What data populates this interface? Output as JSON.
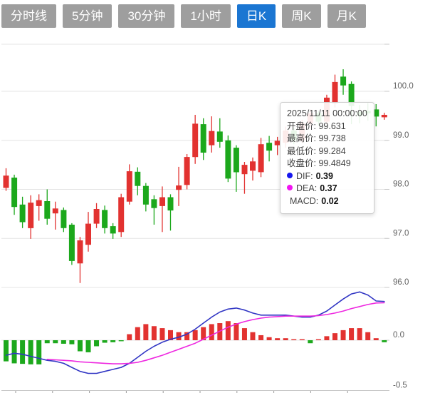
{
  "toolbar": {
    "tabs": [
      {
        "label": "分时线",
        "active": false
      },
      {
        "label": "5分钟",
        "active": false
      },
      {
        "label": "30分钟",
        "active": false
      },
      {
        "label": "1小时",
        "active": false
      },
      {
        "label": "日K",
        "active": true
      },
      {
        "label": "周K",
        "active": false
      },
      {
        "label": "月K",
        "active": false
      }
    ]
  },
  "tooltip": {
    "datetime": "2025/11/11 00:00:00",
    "rows": [
      {
        "label": "开盘价:",
        "value": "99.631"
      },
      {
        "label": "最高价:",
        "value": "99.738"
      },
      {
        "label": "最低价:",
        "value": "99.284"
      },
      {
        "label": "收盘价:",
        "value": "99.4849"
      }
    ],
    "indicators": [
      {
        "label": "DIF:",
        "value": "0.39",
        "bullet_color": "#1717ee"
      },
      {
        "label": "DEA:",
        "value": "0.37",
        "bullet_color": "#f214f2"
      },
      {
        "label": "MACD:",
        "value": "0.02",
        "bullet_color": null
      }
    ]
  },
  "colors": {
    "up_red": "#e23230",
    "down_green": "#1ca81c",
    "dif_line": "#3136c4",
    "dea_line": "#ee28e0",
    "grid": "#e4e4e4",
    "axis_line": "#c9c9c9",
    "tick": "#999999",
    "axis_text": "#606060",
    "tab_bg": "#9e9e9e",
    "tab_active_bg": "#1b76d2",
    "tab_text": "#ffffff",
    "background": "#ffffff"
  },
  "chart_data": {
    "type": "candlestick",
    "subpanes": [
      "price",
      "macd"
    ],
    "hovered_point": {
      "datetime": "2025/11/11 00:00:00",
      "open": 99.631,
      "high": 99.738,
      "low": 99.284,
      "close": 99.4849,
      "dif": 0.39,
      "dea": 0.37,
      "macd": 0.02
    },
    "price_axis": {
      "labels": [
        "100.0",
        "99.0",
        "98.0",
        "97.0",
        "96.0"
      ],
      "values": [
        100.0,
        99.0,
        98.0,
        97.0,
        96.0
      ]
    },
    "macd_axis": {
      "labels": [
        "0.0",
        "-0.5"
      ],
      "values": [
        0.0,
        -0.5
      ]
    },
    "legend_position": "none",
    "grid": true,
    "candles_ohlc": [
      [
        98.03,
        98.43,
        97.97,
        98.28
      ],
      [
        98.24,
        98.3,
        97.48,
        97.64
      ],
      [
        97.69,
        97.85,
        97.21,
        97.33
      ],
      [
        97.21,
        97.88,
        96.99,
        97.73
      ],
      [
        97.66,
        97.9,
        97.36,
        97.78
      ],
      [
        97.76,
        98.0,
        97.28,
        97.4
      ],
      [
        97.51,
        97.75,
        97.18,
        97.61
      ],
      [
        97.58,
        97.63,
        97.13,
        97.21
      ],
      [
        97.28,
        97.31,
        96.46,
        96.54
      ],
      [
        96.49,
        97.03,
        96.09,
        96.96
      ],
      [
        96.87,
        97.54,
        96.73,
        97.3
      ],
      [
        97.3,
        97.72,
        97.21,
        97.6
      ],
      [
        97.58,
        97.67,
        97.1,
        97.21
      ],
      [
        97.25,
        97.31,
        96.99,
        97.1
      ],
      [
        97.13,
        97.91,
        97.03,
        97.84
      ],
      [
        97.75,
        98.51,
        97.69,
        98.37
      ],
      [
        98.36,
        98.45,
        97.88,
        98.07
      ],
      [
        98.07,
        98.13,
        97.55,
        97.69
      ],
      [
        97.8,
        97.88,
        97.28,
        97.62
      ],
      [
        97.66,
        98.06,
        97.13,
        97.84
      ],
      [
        97.84,
        97.9,
        97.16,
        97.57
      ],
      [
        97.99,
        98.46,
        97.66,
        98.08
      ],
      [
        98.09,
        98.72,
        98.0,
        98.66
      ],
      [
        98.66,
        99.52,
        98.52,
        99.34
      ],
      [
        99.33,
        99.45,
        98.6,
        98.75
      ],
      [
        98.9,
        99.49,
        98.75,
        99.19
      ],
      [
        99.18,
        99.45,
        98.85,
        98.97
      ],
      [
        99.0,
        99.1,
        98.15,
        98.22
      ],
      [
        98.85,
        98.9,
        97.95,
        98.35
      ],
      [
        98.31,
        98.56,
        97.91,
        98.5
      ],
      [
        98.38,
        98.65,
        98.18,
        98.57
      ],
      [
        98.35,
        99.05,
        98.25,
        98.92
      ],
      [
        98.95,
        99.09,
        98.57,
        98.79
      ],
      [
        98.9,
        99.07,
        98.7,
        98.99
      ],
      [
        98.95,
        99.28,
        98.85,
        99.2
      ],
      [
        99.2,
        99.26,
        98.92,
        99.0
      ],
      [
        99.0,
        99.42,
        98.95,
        99.35
      ],
      [
        99.35,
        99.63,
        99.28,
        99.55
      ],
      [
        99.55,
        99.6,
        99.3,
        99.38
      ],
      [
        99.38,
        99.93,
        99.33,
        99.87
      ],
      [
        99.75,
        100.34,
        99.67,
        100.19
      ],
      [
        100.3,
        100.45,
        99.93,
        100.12
      ],
      [
        100.15,
        100.2,
        99.33,
        99.7
      ],
      [
        99.58,
        99.72,
        99.35,
        99.5
      ],
      [
        99.6,
        99.76,
        99.4,
        99.55
      ],
      [
        99.631,
        99.738,
        99.284,
        99.4849
      ],
      [
        99.47,
        99.56,
        99.42,
        99.52
      ]
    ],
    "dif": [
      -0.15,
      -0.13,
      -0.14,
      -0.16,
      -0.18,
      -0.2,
      -0.21,
      -0.23,
      -0.27,
      -0.31,
      -0.33,
      -0.33,
      -0.31,
      -0.29,
      -0.27,
      -0.23,
      -0.17,
      -0.11,
      -0.06,
      -0.02,
      0.01,
      0.03,
      0.06,
      0.11,
      0.17,
      0.23,
      0.28,
      0.31,
      0.32,
      0.3,
      0.27,
      0.25,
      0.25,
      0.25,
      0.25,
      0.24,
      0.23,
      0.23,
      0.25,
      0.29,
      0.35,
      0.41,
      0.46,
      0.48,
      0.45,
      0.39,
      0.385
    ],
    "dea": [
      null,
      null,
      null,
      null,
      null,
      -0.19,
      -0.195,
      -0.2,
      -0.205,
      -0.215,
      -0.22,
      -0.225,
      -0.23,
      -0.235,
      -0.235,
      -0.23,
      -0.22,
      -0.2,
      -0.175,
      -0.15,
      -0.12,
      -0.09,
      -0.06,
      -0.03,
      0.01,
      0.05,
      0.09,
      0.13,
      0.16,
      0.185,
      0.205,
      0.22,
      0.23,
      0.235,
      0.24,
      0.24,
      0.24,
      0.24,
      0.245,
      0.255,
      0.27,
      0.29,
      0.315,
      0.335,
      0.355,
      0.37,
      0.372
    ],
    "macd_hist": [
      -0.21,
      -0.23,
      -0.235,
      -0.24,
      -0.24,
      -0.03,
      -0.03,
      -0.035,
      -0.04,
      -0.11,
      -0.12,
      -0.06,
      -0.025,
      -0.02,
      -0.01,
      0.06,
      0.13,
      0.16,
      0.14,
      0.12,
      0.1,
      0.08,
      0.08,
      0.1,
      0.13,
      0.16,
      0.17,
      0.19,
      0.17,
      0.12,
      0.08,
      0.05,
      0.03,
      0.02,
      0.02,
      0.01,
      0.01,
      -0.03,
      0.01,
      0.04,
      0.07,
      0.1,
      0.12,
      0.12,
      0.08,
      0.02,
      -0.02
    ]
  }
}
